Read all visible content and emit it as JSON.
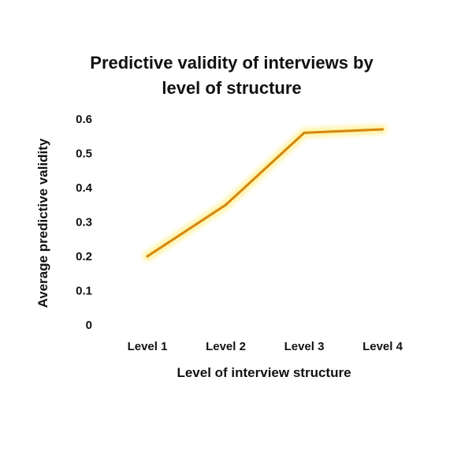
{
  "chart_data": {
    "type": "line",
    "title_lines": [
      "Predictive validity of interviews by",
      "level of structure"
    ],
    "xlabel": "Level of interview structure",
    "ylabel": "Average predictive validity",
    "categories": [
      "Level 1",
      "Level 2",
      "Level 3",
      "Level 4"
    ],
    "series": [
      {
        "values": [
          0.2,
          0.35,
          0.56,
          0.57
        ]
      }
    ],
    "ylim": [
      0,
      0.6
    ],
    "yticks": [
      "0",
      "0.1",
      "0.2",
      "0.3",
      "0.4",
      "0.5",
      "0.6"
    ],
    "grid": false,
    "legend": "none",
    "colors": {
      "line": "#d4870f",
      "glow": "#fff3a6"
    }
  }
}
